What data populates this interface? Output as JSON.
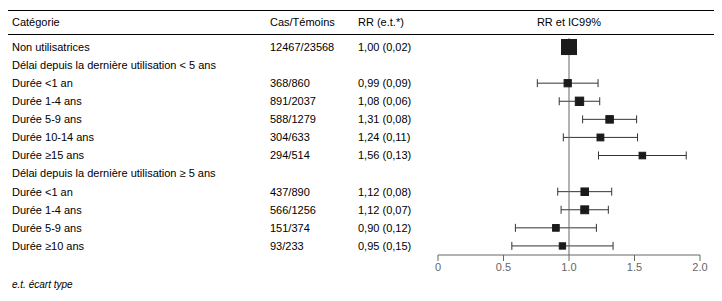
{
  "chart_data": {
    "type": "forest",
    "title": "RR et IC99%",
    "column_headers": [
      "Catégorie",
      "Cas/Témoins",
      "RR (e.t.*)"
    ],
    "categories": [
      "Non utilisatrices",
      "Délai depuis la dernière utilisation < 5 ans",
      "Durée <1 an",
      "Durée 1-4 ans",
      "Durée 5-9 ans",
      "Durée 10-14 ans",
      "Durée ≥15 ans",
      "Délai depuis la dernière utilisation ≥ 5 ans",
      "Durée <1 an",
      "Durée 1-4 ans",
      "Durée 5-9 ans",
      "Durée ≥10 ans"
    ],
    "cases": [
      "12467/23568",
      null,
      "368/860",
      "891/2037",
      "588/1279",
      "304/633",
      "294/514",
      null,
      "437/890",
      "566/1256",
      "151/374",
      "93/233"
    ],
    "values": [
      1.0,
      null,
      0.99,
      1.08,
      1.31,
      1.24,
      1.56,
      null,
      1.12,
      1.12,
      0.9,
      0.95
    ],
    "se": [
      0.02,
      null,
      0.09,
      0.06,
      0.08,
      0.11,
      0.13,
      null,
      0.08,
      0.07,
      0.12,
      0.15
    ],
    "value_labels": [
      "1,00 (0,02)",
      null,
      "0,99 (0,09)",
      "1,08 (0,06)",
      "1,31 (0,08)",
      "1,24 (0,11)",
      "1,56 (0,13)",
      null,
      "1,12 (0,08)",
      "1,12 (0,07)",
      "0,90 (0,12)",
      "0,95 (0,15)"
    ],
    "ci_low": [
      null,
      null,
      0.75816,
      0.92544,
      1.10392,
      0.95664,
      1.22512,
      null,
      0.91392,
      0.93968,
      0.59088,
      0.5636
    ],
    "ci_high": [
      null,
      null,
      1.22184,
      1.23456,
      1.51608,
      1.52336,
      1.89488,
      null,
      1.32608,
      1.30032,
      1.20912,
      1.3364
    ],
    "xlim": [
      0,
      2.0
    ],
    "xticks": [
      0,
      0.5,
      {
        "value": 1.0,
        "label": "1.0"
      },
      1.5,
      {
        "value": 2.0,
        "label": "2.0"
      }
    ],
    "ref_line": 1.0,
    "color": "#1a1a1a",
    "footnote": "e.t. écart type"
  }
}
